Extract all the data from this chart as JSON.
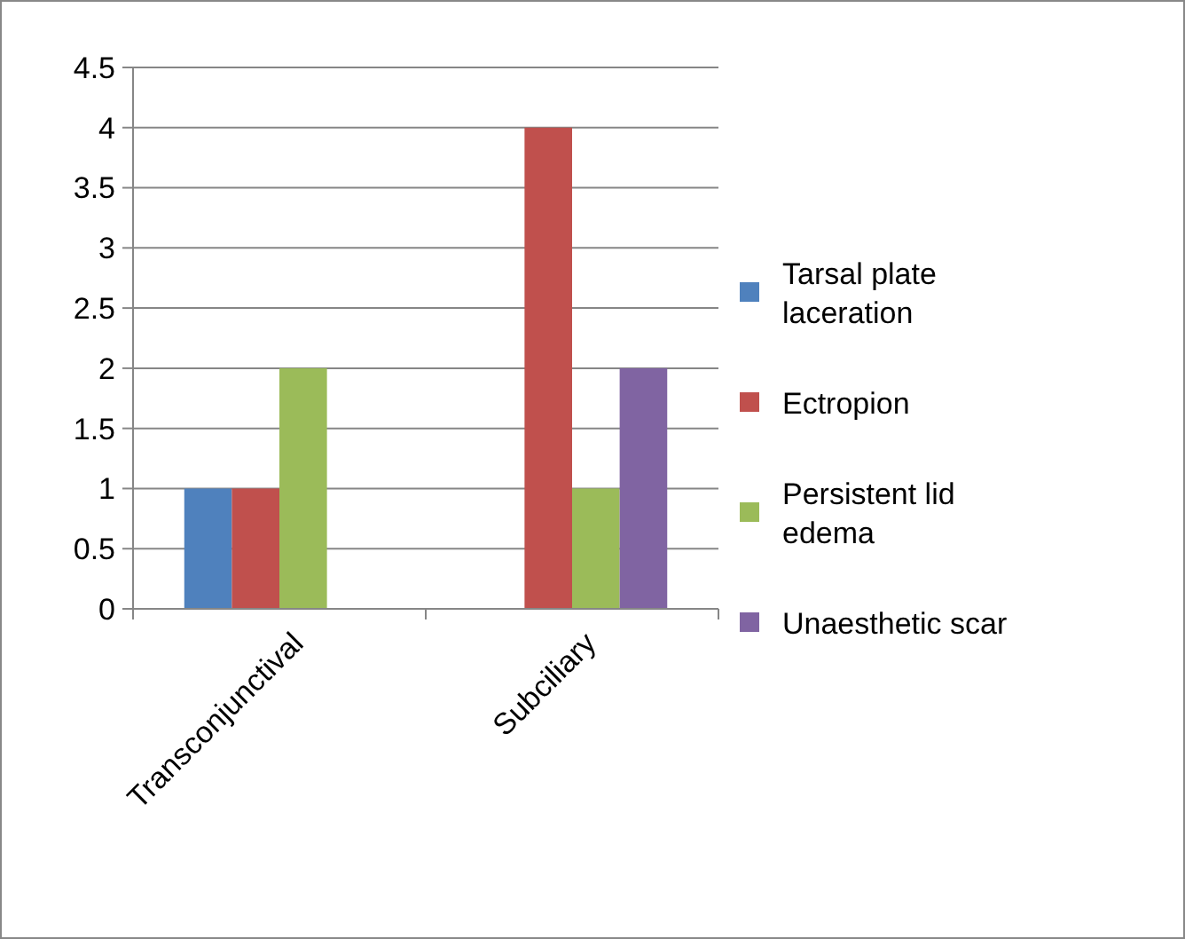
{
  "chart_data": {
    "type": "bar",
    "categories": [
      "Transconjunctival",
      "Subciliary"
    ],
    "series": [
      {
        "name": "Tarsal plate laceration",
        "color": "#4f81bd",
        "values": [
          1,
          0
        ]
      },
      {
        "name": "Ectropion",
        "color": "#c0504d",
        "values": [
          1,
          4
        ]
      },
      {
        "name": "Persistent lid edema",
        "color": "#9bbb59",
        "values": [
          2,
          1
        ]
      },
      {
        "name": "Unaesthetic scar",
        "color": "#8064a2",
        "values": [
          0,
          2
        ]
      }
    ],
    "ylim": [
      0,
      4.5
    ],
    "yticks": [
      0,
      0.5,
      1,
      1.5,
      2,
      2.5,
      3,
      3.5,
      4,
      4.5
    ],
    "grid": "y",
    "legend": "right"
  }
}
